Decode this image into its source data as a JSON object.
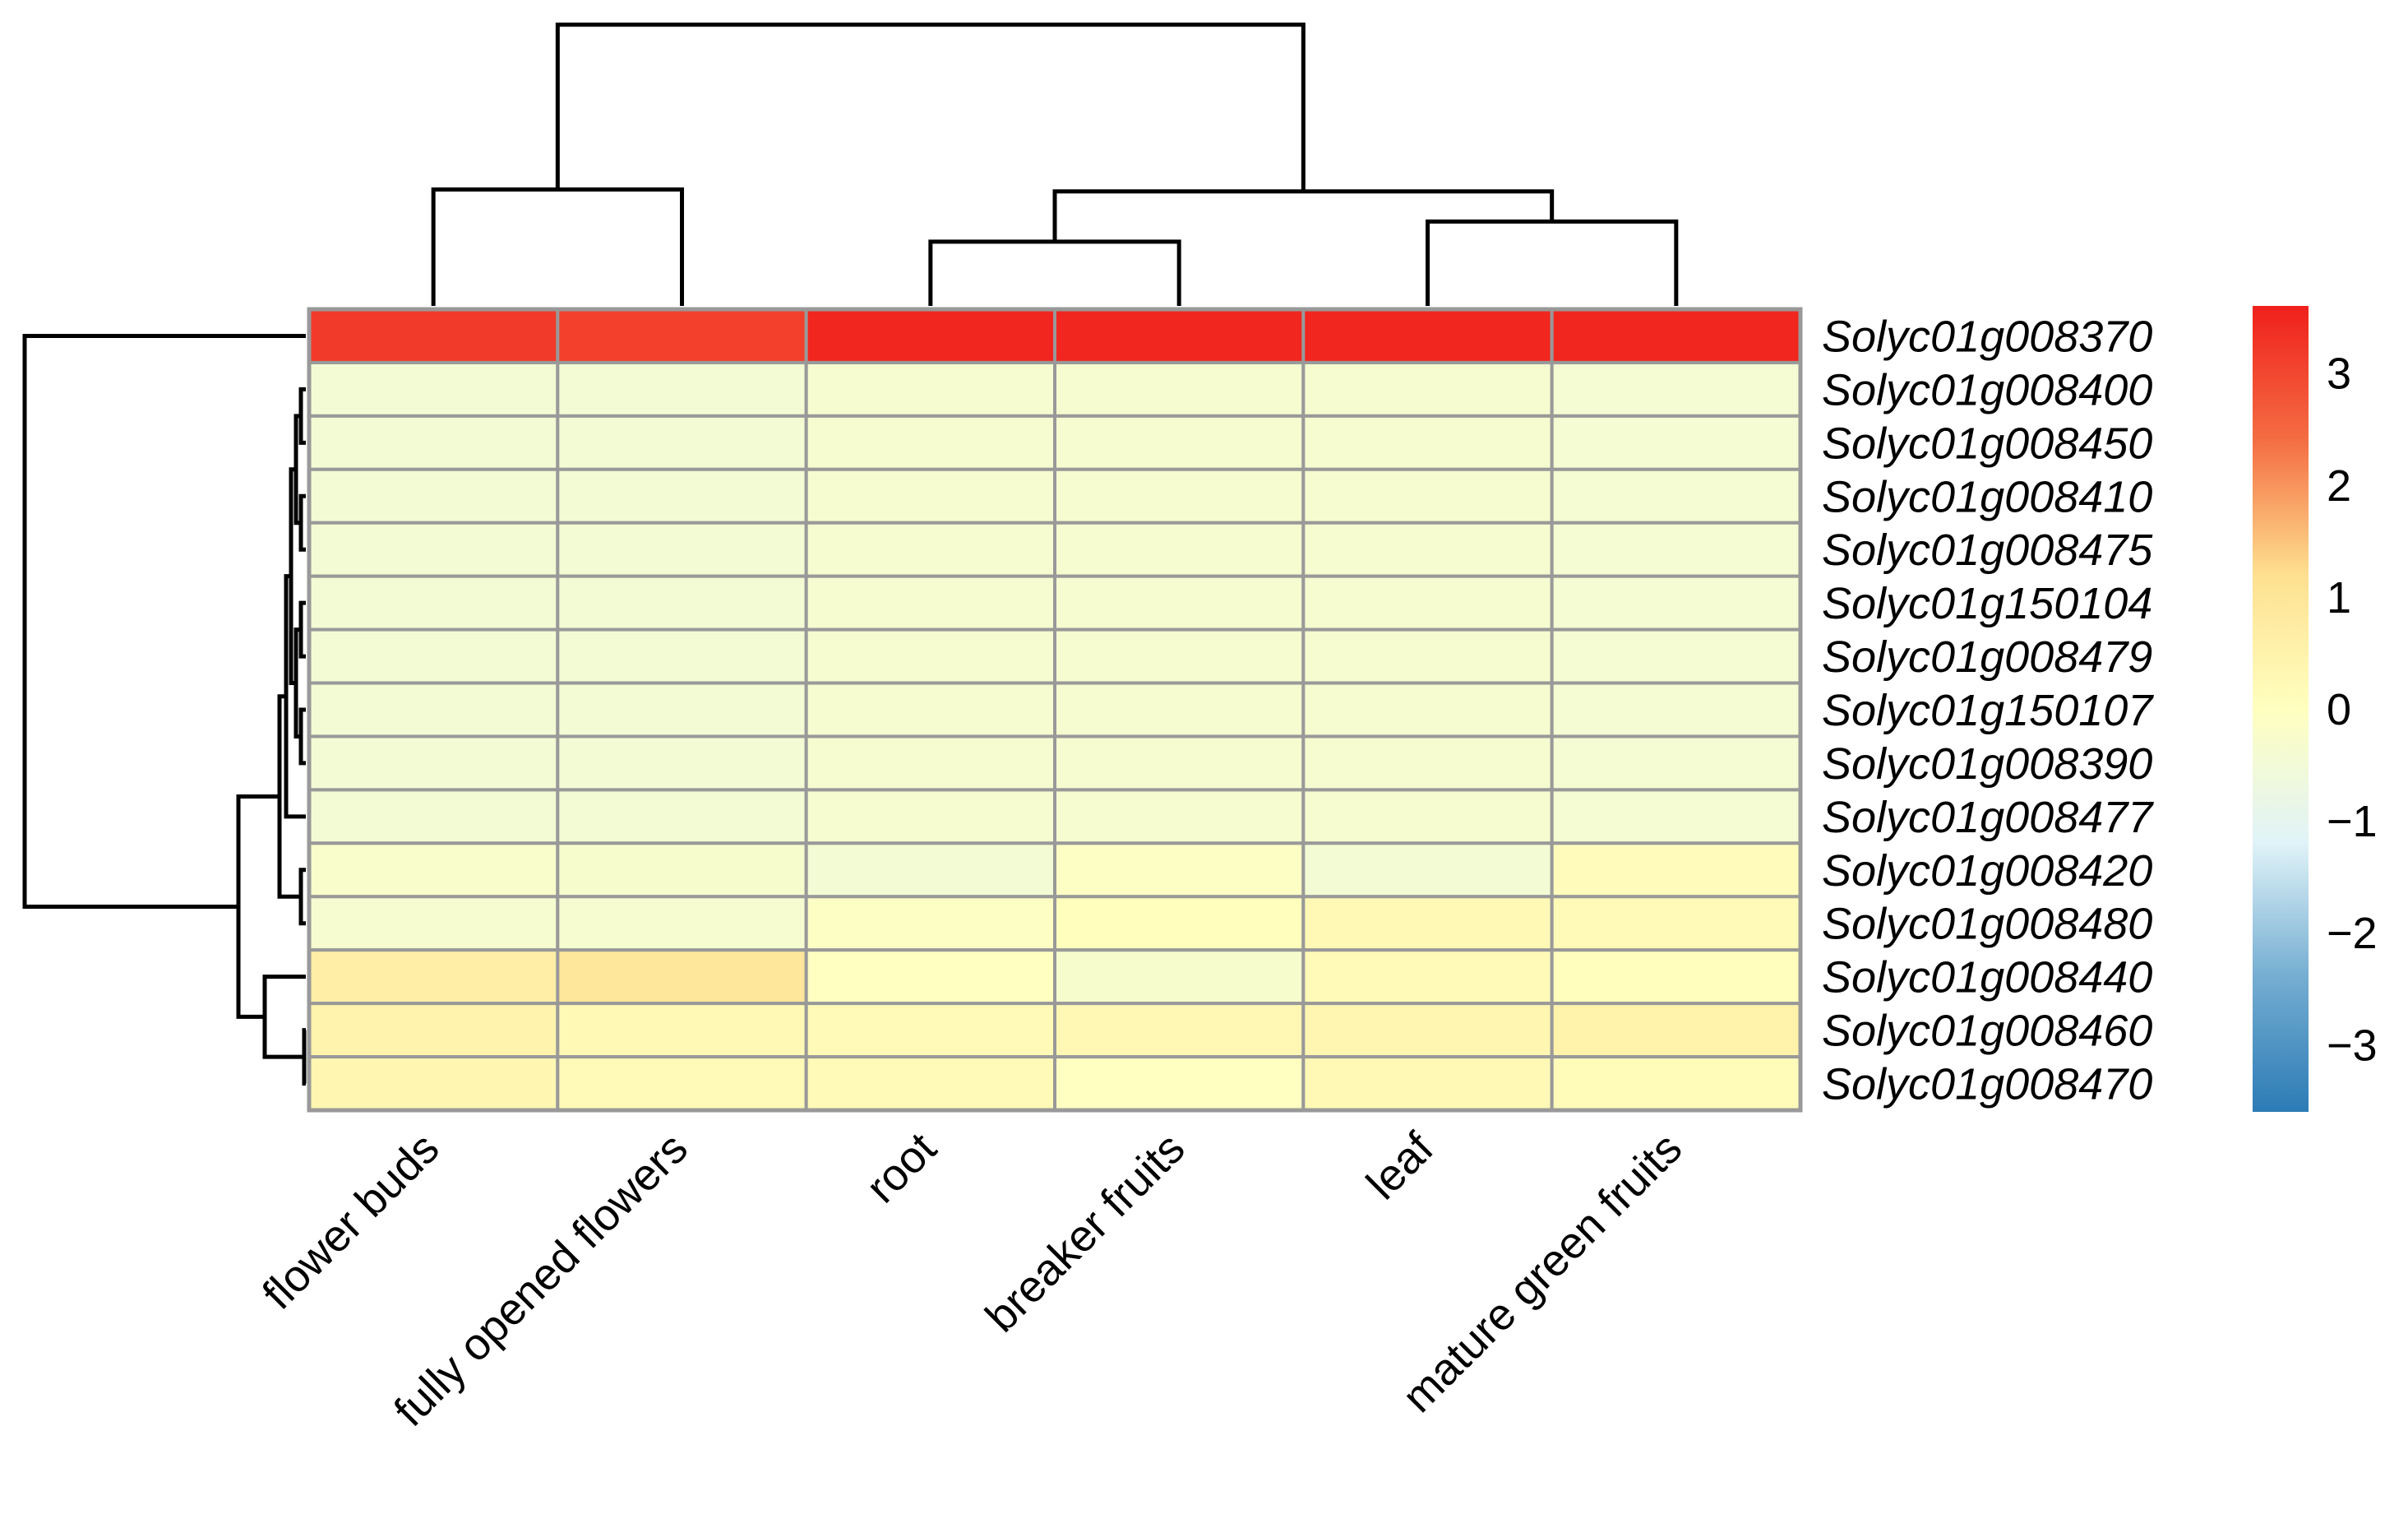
{
  "chart_data": {
    "type": "heatmap",
    "columns": [
      "flower buds",
      "fully opened flowers",
      "root",
      "breaker fruits",
      "leaf",
      "mature green fruits"
    ],
    "rows": [
      "Solyc01g008370",
      "Solyc01g008400",
      "Solyc01g008450",
      "Solyc01g008410",
      "Solyc01g008475",
      "Solyc01g150104",
      "Solyc01g008479",
      "Solyc01g150107",
      "Solyc01g008390",
      "Solyc01g008477",
      "Solyc01g008420",
      "Solyc01g008480",
      "Solyc01g008440",
      "Solyc01g008460",
      "Solyc01g008470"
    ],
    "values": [
      [
        3.2,
        3.1,
        3.5,
        3.5,
        3.5,
        3.5
      ],
      [
        -0.45,
        -0.45,
        -0.35,
        -0.35,
        -0.35,
        -0.4
      ],
      [
        -0.45,
        -0.45,
        -0.35,
        -0.35,
        -0.35,
        -0.4
      ],
      [
        -0.45,
        -0.45,
        -0.35,
        -0.35,
        -0.35,
        -0.4
      ],
      [
        -0.45,
        -0.45,
        -0.35,
        -0.35,
        -0.35,
        -0.4
      ],
      [
        -0.45,
        -0.45,
        -0.35,
        -0.35,
        -0.35,
        -0.4
      ],
      [
        -0.45,
        -0.45,
        -0.35,
        -0.35,
        -0.35,
        -0.4
      ],
      [
        -0.45,
        -0.45,
        -0.35,
        -0.35,
        -0.35,
        -0.4
      ],
      [
        -0.45,
        -0.45,
        -0.35,
        -0.35,
        -0.35,
        -0.4
      ],
      [
        -0.45,
        -0.45,
        -0.35,
        -0.35,
        -0.35,
        -0.4
      ],
      [
        -0.25,
        -0.3,
        -0.45,
        -0.1,
        -0.45,
        0.1
      ],
      [
        -0.35,
        -0.35,
        -0.1,
        0.05,
        0.25,
        0.2
      ],
      [
        0.65,
        0.95,
        -0.05,
        -0.3,
        0.2,
        0.05
      ],
      [
        0.45,
        0.25,
        0.2,
        0.3,
        0.35,
        0.5
      ],
      [
        0.35,
        0.2,
        0.2,
        -0.05,
        0.25,
        0.15
      ]
    ],
    "color_scale": {
      "min": -3.6,
      "max": 3.6,
      "stops": [
        {
          "value": -3.6,
          "color": "#2c7bb6"
        },
        {
          "value": -2.4,
          "color": "#74add1"
        },
        {
          "value": -1.2,
          "color": "#e0f3f8"
        },
        {
          "value": 0.0,
          "color": "#ffffbf"
        },
        {
          "value": 1.2,
          "color": "#fee090"
        },
        {
          "value": 2.4,
          "color": "#f46d43"
        },
        {
          "value": 3.6,
          "color": "#f0201c"
        }
      ],
      "ticks": [
        3,
        2,
        1,
        0,
        -1,
        -2,
        -3
      ],
      "tick_labels": [
        "3",
        "2",
        "1",
        "0",
        "−1",
        "−2",
        "−3"
      ]
    },
    "column_dendrogram": {
      "merges": [
        {
          "a": "flower buds",
          "b": "fully opened flowers",
          "height": 0.58
        },
        {
          "a": "root",
          "b": "breaker fruits",
          "height": 0.32
        },
        {
          "a": "leaf",
          "b": "mature green fruits",
          "height": 0.42
        },
        {
          "a": "root+breaker fruits",
          "b": "leaf+mature green fruits",
          "height": 0.57
        },
        {
          "a": "flower buds+fully opened flowers",
          "b": "root+breaker fruits+leaf+mature green fruits",
          "height": 1.4
        }
      ]
    },
    "row_dendrogram": {
      "merges": [
        {
          "a": "Solyc01g008400..Solyc01g008480",
          "b": "Solyc01g008440..Solyc01g008470",
          "height": 0.3
        },
        {
          "a": "Solyc01g008370",
          "b": "others",
          "height": 1.5
        }
      ]
    },
    "grid_color": "#999999",
    "border_color": "#999999"
  }
}
